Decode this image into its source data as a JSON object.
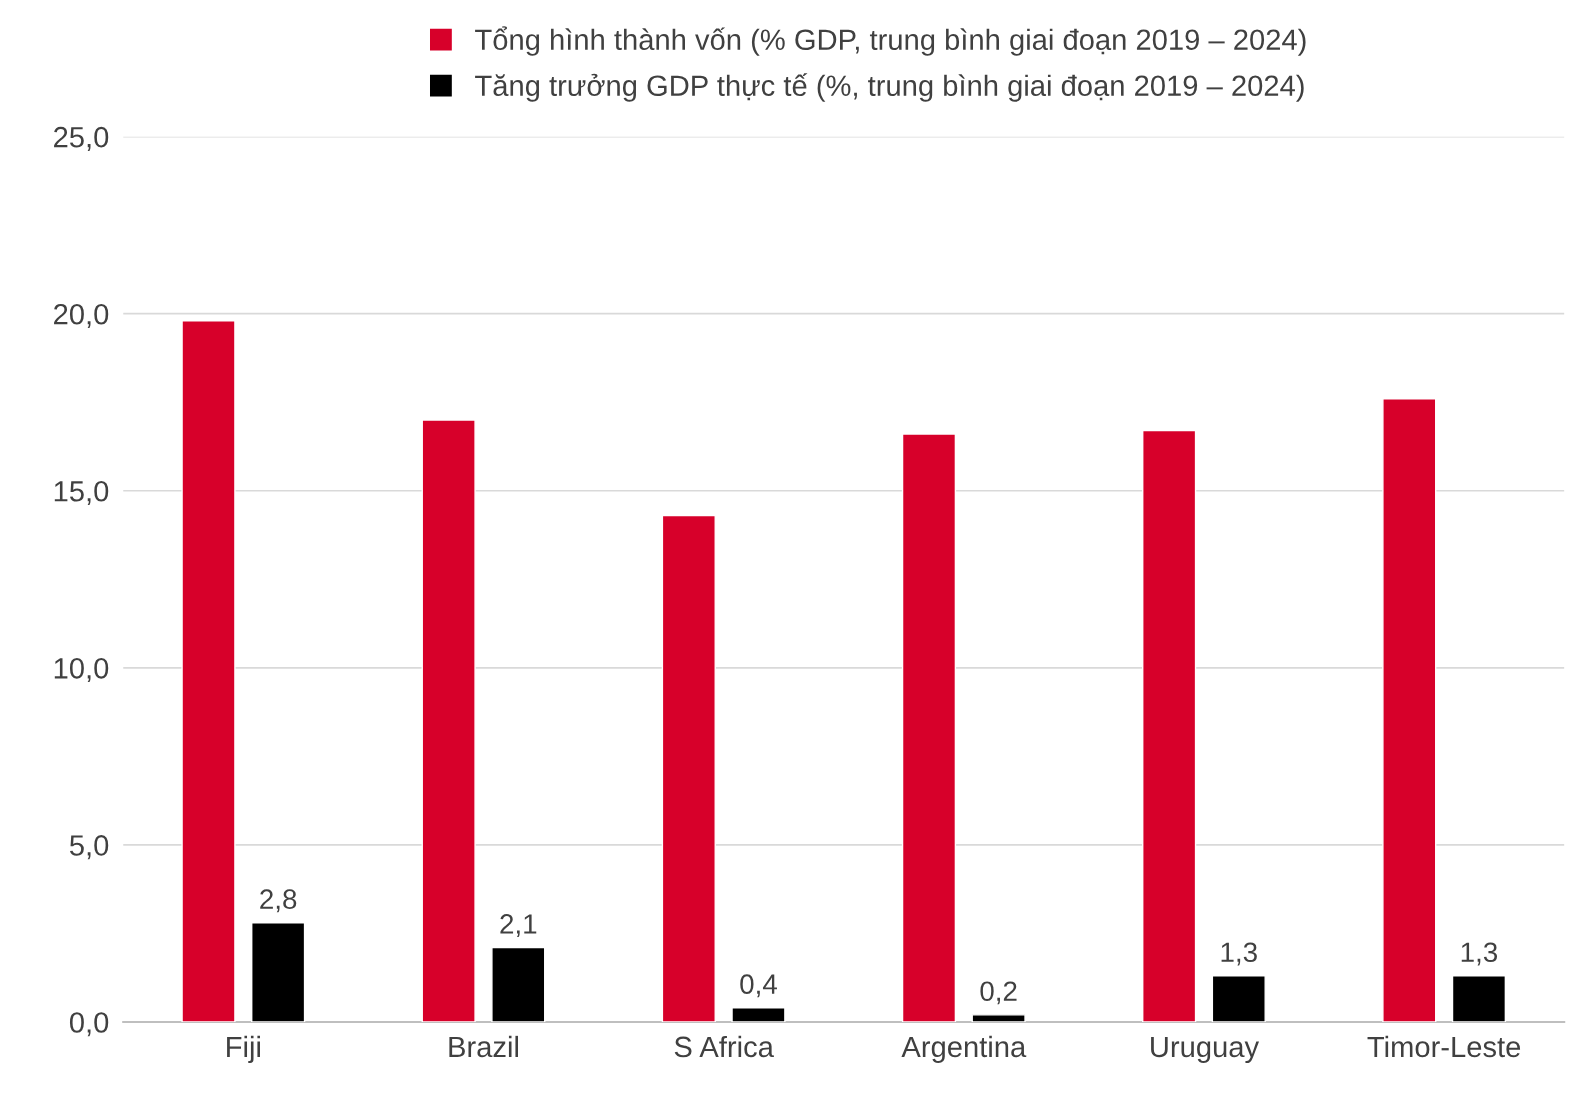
{
  "chart_data": {
    "type": "bar",
    "categories": [
      "Fiji",
      "Brazil",
      "S Africa",
      "Argentina",
      "Uruguay",
      "Timor-Leste"
    ],
    "series": [
      {
        "name": "Tổng hình thành vốn (% GDP, trung bình giai đoạn 2019 – 2024)",
        "color": "#d7002a",
        "values": [
          19.8,
          17.0,
          14.3,
          16.6,
          16.7,
          17.6
        ]
      },
      {
        "name": "Tăng trưởng GDP thực tế (%, trung bình giai đoạn 2019 – 2024)",
        "color": "#000000",
        "values": [
          2.8,
          2.1,
          0.4,
          0.2,
          1.3,
          1.3
        ],
        "value_labels": [
          "2,8",
          "2,1",
          "0,4",
          "0,2",
          "1,3",
          "1,3"
        ]
      }
    ],
    "ylim": [
      0,
      25
    ],
    "yticks": [
      {
        "value": 0,
        "label": "0,0"
      },
      {
        "value": 5,
        "label": "5,0"
      },
      {
        "value": 10,
        "label": "10,0"
      },
      {
        "value": 15,
        "label": "15,0"
      },
      {
        "value": 20,
        "label": "20,0"
      },
      {
        "value": 25,
        "label": "25,0"
      }
    ],
    "grid": "y",
    "legend": "top"
  }
}
